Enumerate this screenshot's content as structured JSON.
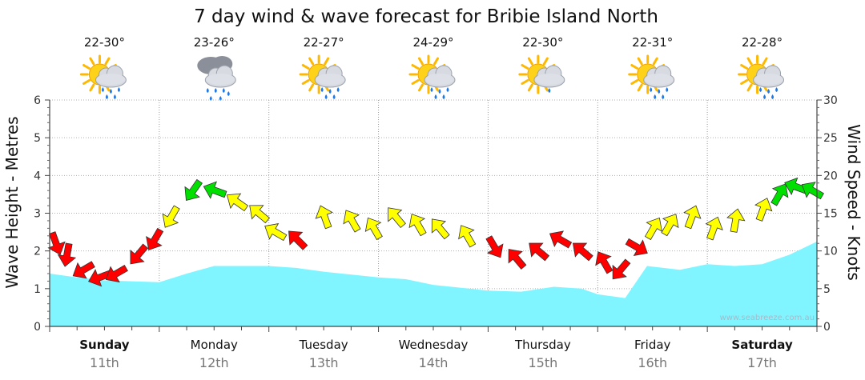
{
  "chart_data": {
    "type": "area",
    "title": "7 day wind & wave forecast for Bribie Island North",
    "ylabel": "Wave Height - Metres",
    "y2label": "Wind Speed - Knots",
    "ylim": [
      0,
      6
    ],
    "y2lim": [
      0,
      30
    ],
    "yticks": [
      "0",
      "1",
      "2",
      "3",
      "4",
      "5",
      "6"
    ],
    "y2ticks": [
      "0",
      "5",
      "10",
      "15",
      "20",
      "25",
      "30"
    ],
    "watermark": "www.seabreeze.com.au",
    "days": [
      {
        "name": "Sunday",
        "date": "11th",
        "temp": "22-30°",
        "icon": "sun-cloud-rain-icon",
        "bold": true
      },
      {
        "name": "Monday",
        "date": "12th",
        "temp": "23-26°",
        "icon": "cloud-rain-icon",
        "bold": false
      },
      {
        "name": "Tuesday",
        "date": "13th",
        "temp": "22-27°",
        "icon": "sun-cloud-rain-icon",
        "bold": false
      },
      {
        "name": "Wednesday",
        "date": "14th",
        "temp": "24-29°",
        "icon": "sun-cloud-rain-icon",
        "bold": false
      },
      {
        "name": "Thursday",
        "date": "15th",
        "temp": "22-30°",
        "icon": "sun-cloud-drizzle-icon",
        "bold": false
      },
      {
        "name": "Friday",
        "date": "16th",
        "temp": "22-31°",
        "icon": "sun-cloud-rain-icon",
        "bold": false
      },
      {
        "name": "Saturday",
        "date": "17th",
        "temp": "22-28°",
        "icon": "sun-cloud-rain-icon",
        "bold": true
      }
    ],
    "wave_series": {
      "day_offset": [
        0,
        0.25,
        0.5,
        1,
        1.25,
        1.5,
        2,
        2.25,
        2.5,
        3,
        3.25,
        3.5,
        4,
        4.3,
        4.6,
        4.85,
        5,
        5.25,
        5.45,
        5.75,
        6,
        6.25,
        6.5,
        6.75,
        7
      ],
      "height_m": [
        1.4,
        1.3,
        1.22,
        1.17,
        1.4,
        1.6,
        1.6,
        1.55,
        1.45,
        1.3,
        1.25,
        1.1,
        0.95,
        0.92,
        1.05,
        1.0,
        0.85,
        0.75,
        1.6,
        1.5,
        1.65,
        1.6,
        1.65,
        1.9,
        2.25
      ]
    },
    "wind_series": {
      "day_offset": [
        0,
        0.1,
        0.25,
        0.4,
        0.55,
        0.75,
        0.9,
        1.05,
        1.25,
        1.45,
        1.65,
        1.85,
        2.0,
        2.2,
        2.45,
        2.7,
        2.9,
        3.1,
        3.3,
        3.5,
        3.75,
        4.0,
        4.2,
        4.4,
        4.6,
        4.8,
        5.0,
        5.15,
        5.3,
        5.45,
        5.6,
        5.8,
        6.0,
        6.2,
        6.45,
        6.6,
        6.75,
        6.9
      ],
      "speed_kn": [
        11,
        9.5,
        7.5,
        6.5,
        7.0,
        9.5,
        11.5,
        14.5,
        18.0,
        18.0,
        16.5,
        15.0,
        12.5,
        11.5,
        14.5,
        14.0,
        13.0,
        14.5,
        13.5,
        13.0,
        12.0,
        10.5,
        9.0,
        10.0,
        11.5,
        10.0,
        8.5,
        7.5,
        10.5,
        13.0,
        13.5,
        14.5,
        13.0,
        14.0,
        15.5,
        17.5,
        18.5,
        18.0
      ],
      "direction_deg": [
        160,
        190,
        240,
        250,
        240,
        220,
        210,
        210,
        215,
        290,
        305,
        310,
        300,
        315,
        340,
        330,
        330,
        320,
        330,
        320,
        330,
        150,
        320,
        310,
        300,
        310,
        330,
        220,
        120,
        30,
        30,
        20,
        20,
        10,
        20,
        30,
        290,
        300
      ]
    },
    "wind_colors": {
      "calm": "#ff0000",
      "moderate": "#ffff00",
      "strong": "#00e000"
    },
    "wave_color": "#80f5ff"
  }
}
